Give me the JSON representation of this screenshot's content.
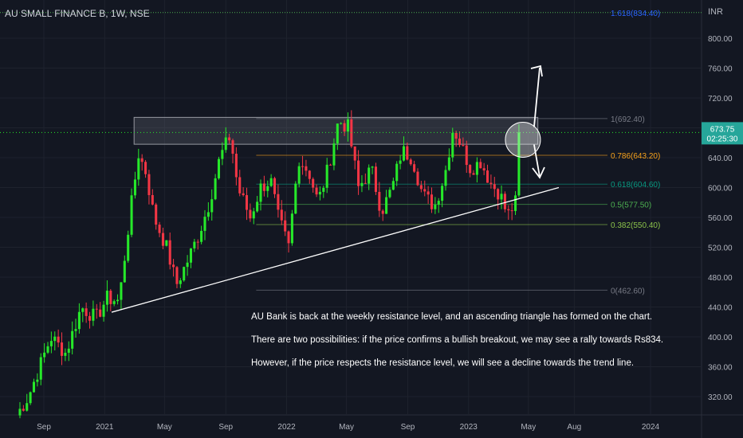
{
  "symbol_title": "AU SMALL FINANCE B, 1W, NSE",
  "currency": "INR",
  "last_price": "673.75",
  "countdown": "02:25:30",
  "colors": {
    "background": "#131722",
    "grid": "#1e222d",
    "up": "#26e82a",
    "down": "#f23645",
    "axis_text": "#b2b5be",
    "fib_orange": "#f7a21b",
    "fib_green": "#4caf50",
    "fib_teal": "#089981",
    "fib_blue": "#2962ff"
  },
  "chart_data": {
    "type": "candlestick",
    "y_ticks": [
      "800.00",
      "760.00",
      "720.00",
      "680.00",
      "640.00",
      "600.00",
      "560.00",
      "520.00",
      "480.00",
      "440.00",
      "400.00",
      "360.00",
      "320.00"
    ],
    "x_ticks": [
      "Sep",
      "2021",
      "May",
      "Sep",
      "2022",
      "May",
      "Sep",
      "2023",
      "May",
      "Aug",
      "2024"
    ],
    "ylim": [
      290,
      855
    ],
    "xlim": [
      "2020-07-01",
      "2024-05-01"
    ],
    "fib_levels": [
      {
        "ratio": "1.618",
        "price": 834.4,
        "label": "1.618(834.40)",
        "color": "#2962ff"
      },
      {
        "ratio": "1",
        "price": 692.4,
        "label": "1(692.40)",
        "color": "#787b86"
      },
      {
        "ratio": "0.786",
        "price": 643.2,
        "label": "0.786(643.20)",
        "color": "#f7a21b"
      },
      {
        "ratio": "0.618",
        "price": 604.6,
        "label": "0.618(604.60)",
        "color": "#089981"
      },
      {
        "ratio": "0.5",
        "price": 577.5,
        "label": "0.5(577.50)",
        "color": "#4caf50"
      },
      {
        "ratio": "0.382",
        "price": 550.4,
        "label": "0.382(550.40)",
        "color": "#8bc34a"
      },
      {
        "ratio": "0",
        "price": 462.6,
        "label": "0(462.60)",
        "color": "#787b86"
      }
    ],
    "resistance_zone": {
      "low": 658,
      "high": 694
    },
    "trendline": {
      "from": {
        "date": "2021-01-15",
        "price": 433
      },
      "to": {
        "date": "2023-07-01",
        "price": 600
      }
    },
    "annotations": [
      "AU Bank is back at the weekly resistance level, and an ascending triangle has formed on the chart.",
      "There are two possibilities: if the price confirms a bullish breakout, we may see a rally towards Rs834.",
      "However, if the price respects the resistance level, we will see a decline towards the trend line."
    ],
    "anchors": [
      [
        "2020-07-08",
        295
      ],
      [
        "2020-08-01",
        320
      ],
      [
        "2020-09-15",
        400
      ],
      [
        "2020-10-15",
        378
      ],
      [
        "2020-11-15",
        440
      ],
      [
        "2020-12-15",
        425
      ],
      [
        "2021-01-05",
        452
      ],
      [
        "2021-01-30",
        448
      ],
      [
        "2021-02-20",
        560
      ],
      [
        "2021-03-10",
        645
      ],
      [
        "2021-03-25",
        620
      ],
      [
        "2021-04-10",
        560
      ],
      [
        "2021-05-05",
        520
      ],
      [
        "2021-05-25",
        470
      ],
      [
        "2021-06-15",
        500
      ],
      [
        "2021-07-10",
        540
      ],
      [
        "2021-07-30",
        580
      ],
      [
        "2021-08-20",
        640
      ],
      [
        "2021-09-10",
        670
      ],
      [
        "2021-09-25",
        600
      ],
      [
        "2021-10-20",
        560
      ],
      [
        "2021-11-10",
        600
      ],
      [
        "2021-11-30",
        610
      ],
      [
        "2021-12-15",
        560
      ],
      [
        "2022-01-05",
        520
      ],
      [
        "2022-01-25",
        640
      ],
      [
        "2022-02-15",
        620
      ],
      [
        "2022-03-05",
        580
      ],
      [
        "2022-03-25",
        625
      ],
      [
        "2022-04-15",
        690
      ],
      [
        "2022-05-05",
        680
      ],
      [
        "2022-05-25",
        600
      ],
      [
        "2022-06-20",
        625
      ],
      [
        "2022-07-10",
        568
      ],
      [
        "2022-08-01",
        600
      ],
      [
        "2022-08-20",
        650
      ],
      [
        "2022-09-10",
        640
      ],
      [
        "2022-10-01",
        590
      ],
      [
        "2022-10-25",
        575
      ],
      [
        "2022-11-15",
        620
      ],
      [
        "2022-12-01",
        680
      ],
      [
        "2022-12-15",
        660
      ],
      [
        "2023-01-05",
        625
      ],
      [
        "2023-01-25",
        635
      ],
      [
        "2023-02-15",
        605
      ],
      [
        "2023-03-05",
        592
      ],
      [
        "2023-03-20",
        562
      ],
      [
        "2023-04-05",
        580
      ],
      [
        "2023-04-15",
        674
      ]
    ]
  }
}
